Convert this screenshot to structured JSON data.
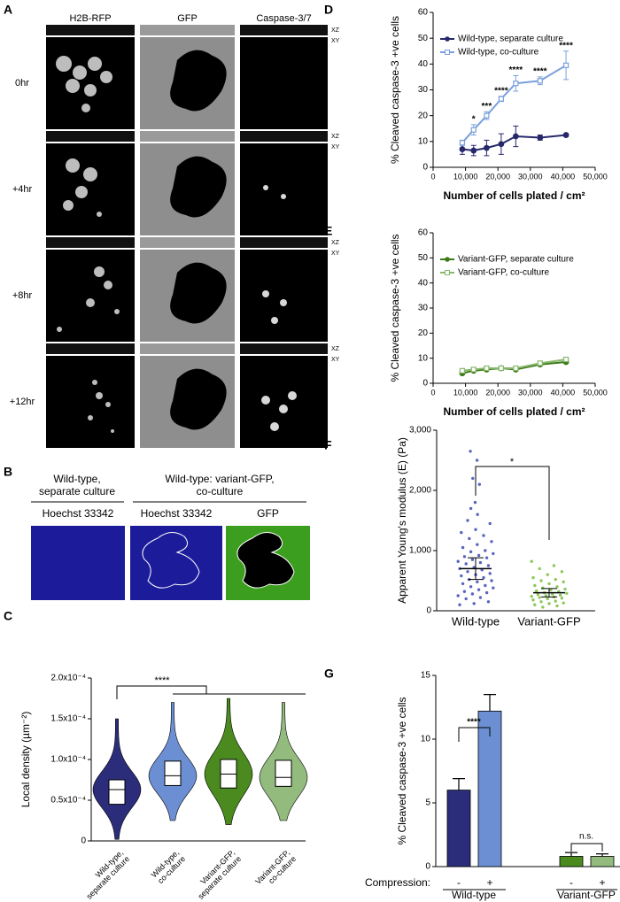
{
  "figure": {
    "panel_labels": [
      "A",
      "B",
      "C",
      "D",
      "E",
      "F",
      "G"
    ],
    "panel_a": {
      "columns": [
        "H2B-RFP",
        "GFP",
        "Caspase-3/7"
      ],
      "rows": [
        "0hr",
        "+4hr",
        "+8hr",
        "+12hr"
      ],
      "views": [
        "XZ",
        "XY"
      ]
    },
    "panel_b": {
      "groups": [
        [
          "Wild-type,",
          "separate culture"
        ],
        [
          "Wild-type: variant-GFP,",
          "co-culture"
        ]
      ],
      "images": [
        "Hoechst 33342",
        "Hoechst 33342",
        "GFP"
      ]
    }
  },
  "chart_data": [
    {
      "type": "violin",
      "ylabel": "Local density (µm⁻²)",
      "categories": [
        [
          "Wild-type,",
          "separate culture"
        ],
        [
          "Wild-type,",
          "co-culture"
        ],
        [
          "Variant-GFP,",
          "separate culture"
        ],
        [
          "Variant-GFP,",
          "co-culture"
        ]
      ],
      "colors": [
        "#2b2d7a",
        "#6c8fd4",
        "#4a8a1e",
        "#93bb7e"
      ],
      "stats": [
        {
          "min": 2e-06,
          "q1": 4.5e-05,
          "median": 6.3e-05,
          "q3": 7.5e-05,
          "max": 0.00015
        },
        {
          "min": 2.5e-05,
          "q1": 6.8e-05,
          "median": 8e-05,
          "q3": 9.8e-05,
          "max": 0.00017
        },
        {
          "min": 2e-05,
          "q1": 6.5e-05,
          "median": 8.2e-05,
          "q3": 0.0001,
          "max": 0.000175
        },
        {
          "min": 2.5e-05,
          "q1": 6.7e-05,
          "median": 7.8e-05,
          "q3": 9.9e-05,
          "max": 0.00017
        }
      ],
      "ylim": [
        0,
        0.0002
      ],
      "yticks": [
        0,
        {
          "value": 5e-05,
          "label": "0.5x10⁻⁴"
        },
        {
          "value": 0.0001,
          "label": "1.0x10⁻⁴"
        },
        {
          "value": 0.00015,
          "label": "1.5x10⁻⁴"
        },
        {
          "value": 0.0002,
          "label": "2.0x10⁻⁴"
        }
      ],
      "annotations": [
        "****"
      ]
    },
    {
      "type": "line",
      "ylabel": "% Cleaved caspase-3 +ve cells",
      "xlabel": "Number of cells plated / cm²",
      "x": [
        9000,
        12500,
        16500,
        21000,
        25500,
        33000,
        41000
      ],
      "series": [
        {
          "name": "Wild-type, separate culture",
          "color": "#27286b",
          "marker": "circle",
          "values": [
            7,
            6.5,
            7.5,
            9,
            12,
            11.5,
            12.5
          ],
          "errors": [
            2,
            2,
            3,
            4,
            4,
            1,
            0.5
          ]
        },
        {
          "name": "Wild-type, co-culture",
          "color": "#7aa0dc",
          "marker": "square",
          "values": [
            9.5,
            14.5,
            20,
            26.5,
            32.5,
            33.5,
            39.5
          ],
          "errors": [
            1,
            2,
            1.5,
            1,
            3,
            1.5,
            5.5
          ]
        }
      ],
      "xlim": [
        0,
        50000
      ],
      "xticks": [
        0,
        {
          "value": 10000,
          "label": "10,000"
        },
        {
          "value": 20000,
          "label": "20,000"
        },
        {
          "value": 30000,
          "label": "30,000"
        },
        {
          "value": 40000,
          "label": "40,000"
        },
        {
          "value": 50000,
          "label": "50,000"
        }
      ],
      "ylim": [
        0,
        60
      ],
      "yticks": [
        0,
        10,
        20,
        30,
        40,
        50,
        60
      ],
      "annotations": [
        {
          "text": "*",
          "x": 12500
        },
        {
          "text": "***",
          "x": 16500
        },
        {
          "text": "****",
          "x": 21000
        },
        {
          "text": "****",
          "x": 25500
        },
        {
          "text": "****",
          "x": 33000
        },
        {
          "text": "****",
          "x": 41000
        }
      ]
    },
    {
      "type": "line",
      "ylabel": "% Cleaved caspase-3 +ve cells",
      "xlabel": "Number of cells plated / cm²",
      "x": [
        9000,
        12500,
        16500,
        21000,
        25500,
        33000,
        41000
      ],
      "series": [
        {
          "name": "Variant-GFP, separate culture",
          "color": "#3c7a18",
          "marker": "circle",
          "values": [
            4,
            5,
            5.5,
            6,
            5.5,
            7.5,
            8.5
          ],
          "errors": [
            0.5,
            0.5,
            0.5,
            0.5,
            0.5,
            0.5,
            0.5
          ]
        },
        {
          "name": "Variant-GFP, co-culture",
          "color": "#86b86c",
          "marker": "square",
          "values": [
            5,
            5.5,
            6,
            6,
            6,
            8,
            9.5
          ],
          "errors": [
            0.5,
            0.5,
            0.5,
            0.5,
            0.5,
            0.5,
            0.5
          ]
        }
      ],
      "xlim": [
        0,
        50000
      ],
      "xticks": [
        0,
        {
          "value": 10000,
          "label": "10,000"
        },
        {
          "value": 20000,
          "label": "20,000"
        },
        {
          "value": 30000,
          "label": "30,000"
        },
        {
          "value": 40000,
          "label": "40,000"
        },
        {
          "value": 50000,
          "label": "50,000"
        }
      ],
      "ylim": [
        0,
        60
      ],
      "yticks": [
        0,
        10,
        20,
        30,
        40,
        50,
        60
      ],
      "annotations": []
    },
    {
      "type": "dot",
      "ylabel": "Apparent Young's modulus (E) (Pa)",
      "categories": [
        "Wild-type",
        "Variant-GFP"
      ],
      "groups": [
        {
          "color": "#5a64c0",
          "mean": 700,
          "error": 180,
          "points": [
            2650,
            2500,
            2200,
            2100,
            1800,
            1700,
            1600,
            1500,
            1450,
            1350,
            1300,
            1250,
            1200,
            1150,
            1100,
            1050,
            1000,
            980,
            950,
            920,
            900,
            880,
            850,
            820,
            800,
            780,
            750,
            720,
            700,
            680,
            650,
            620,
            600,
            580,
            550,
            520,
            500,
            480,
            450,
            420,
            400,
            380,
            350,
            320,
            300,
            280,
            250,
            220,
            200,
            150,
            120,
            100
          ]
        },
        {
          "color": "#8cc85a",
          "mean": 300,
          "error": 70,
          "points": [
            820,
            750,
            700,
            650,
            600,
            550,
            520,
            500,
            480,
            450,
            420,
            400,
            380,
            360,
            350,
            330,
            320,
            300,
            290,
            280,
            270,
            260,
            250,
            240,
            230,
            220,
            210,
            200,
            180,
            160,
            150,
            130,
            120,
            100,
            80,
            60
          ]
        }
      ],
      "ylim": [
        0,
        3000
      ],
      "yticks": [
        0,
        {
          "value": 1000,
          "label": "1,000"
        },
        {
          "value": 2000,
          "label": "2,000"
        },
        {
          "value": 3000,
          "label": "3,000"
        }
      ],
      "annotations": [
        "*"
      ]
    },
    {
      "type": "bar",
      "ylabel": "% Cleaved caspase-3 +ve cells",
      "category_title": "Compression:",
      "categories": [
        "-",
        "+",
        "-",
        "+"
      ],
      "groups": [
        "Wild-type",
        "Variant-GFP"
      ],
      "values": [
        6,
        12.2,
        0.8,
        0.8
      ],
      "errors": [
        0.9,
        1.3,
        0.3,
        0.2
      ],
      "colors": [
        "#2b2d7a",
        "#6c8fd4",
        "#4a8a1e",
        "#93bb7e"
      ],
      "ylim": [
        0,
        15
      ],
      "yticks": [
        0,
        5,
        10,
        15
      ],
      "annotations": [
        "****",
        "n.s."
      ]
    }
  ]
}
